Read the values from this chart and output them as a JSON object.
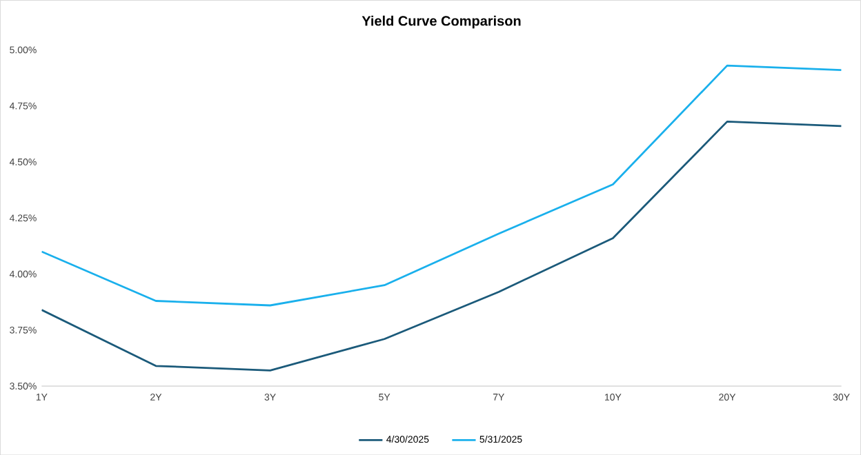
{
  "chart_data": {
    "type": "line",
    "title": "Yield Curve Comparison",
    "categories": [
      "1Y",
      "2Y",
      "3Y",
      "5Y",
      "7Y",
      "10Y",
      "20Y",
      "30Y"
    ],
    "series": [
      {
        "name": "4/30/2025",
        "color": "#1b5a7a",
        "values": [
          3.84,
          3.59,
          3.57,
          3.71,
          3.92,
          4.16,
          4.68,
          4.66
        ]
      },
      {
        "name": "5/31/2025",
        "color": "#1ab0ec",
        "values": [
          4.1,
          3.88,
          3.86,
          3.95,
          4.18,
          4.4,
          4.93,
          4.91
        ]
      }
    ],
    "ylim": [
      3.5,
      5.0
    ],
    "yticks": [
      {
        "value": 3.5,
        "label": "3.50%"
      },
      {
        "value": 3.75,
        "label": "3.75%"
      },
      {
        "value": 4.0,
        "label": "4.00%"
      },
      {
        "value": 4.25,
        "label": "4.25%"
      },
      {
        "value": 4.5,
        "label": "4.50%"
      },
      {
        "value": 4.75,
        "label": "4.75%"
      },
      {
        "value": 5.0,
        "label": "5.00%"
      }
    ],
    "grid": false,
    "legend": "bottom",
    "marker": "none",
    "line_style": "solid"
  }
}
